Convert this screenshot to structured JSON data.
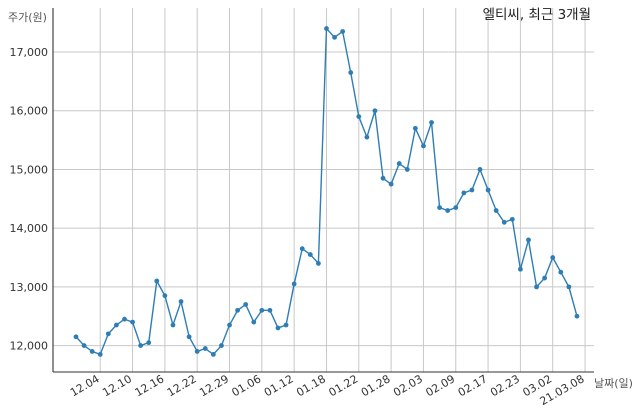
{
  "chart_data": {
    "type": "line",
    "title": "엘티씨, 최근 3개월",
    "ylabel": "주가(원)",
    "xlabel": "날짜(일)",
    "ylim": [
      11550,
      17750
    ],
    "yticks": [
      12000,
      13000,
      14000,
      15000,
      16000,
      17000
    ],
    "ytick_labels": [
      "12,000",
      "13,000",
      "14,000",
      "15,000",
      "16,000",
      "17,000"
    ],
    "xtick_labels": [
      "12.04",
      "12.10",
      "12.16",
      "12.22",
      "12.29",
      "01.06",
      "01.12",
      "01.18",
      "01.22",
      "01.28",
      "02.03",
      "02.09",
      "02.17",
      "02.23",
      "03.02",
      "21.03.08"
    ],
    "xtick_index": [
      3,
      7,
      11,
      15,
      19,
      23,
      27,
      31,
      35,
      39,
      43,
      47,
      51,
      55,
      59,
      63
    ],
    "grid": true,
    "color": "#2e7db5",
    "series": [
      {
        "values": [
          12150,
          12000,
          11900,
          11850,
          12200,
          12350,
          12450,
          12400,
          12000,
          12050,
          13100,
          12850,
          12350,
          12750,
          12150,
          11900,
          11950,
          11850,
          12000,
          12350,
          12600,
          12700,
          12400,
          12600,
          12600,
          12300,
          12350,
          13050,
          13650,
          13550,
          13400,
          17400,
          17250,
          17350,
          16650,
          15900,
          15550,
          16000,
          14850,
          14750,
          15100,
          15000,
          15700,
          15400,
          15800,
          14350,
          14300,
          14350,
          14600,
          14650,
          15000,
          14650,
          14300,
          14100,
          14150,
          13300,
          13800,
          13000,
          13150,
          13500,
          13250,
          13000,
          12500
        ]
      }
    ]
  }
}
